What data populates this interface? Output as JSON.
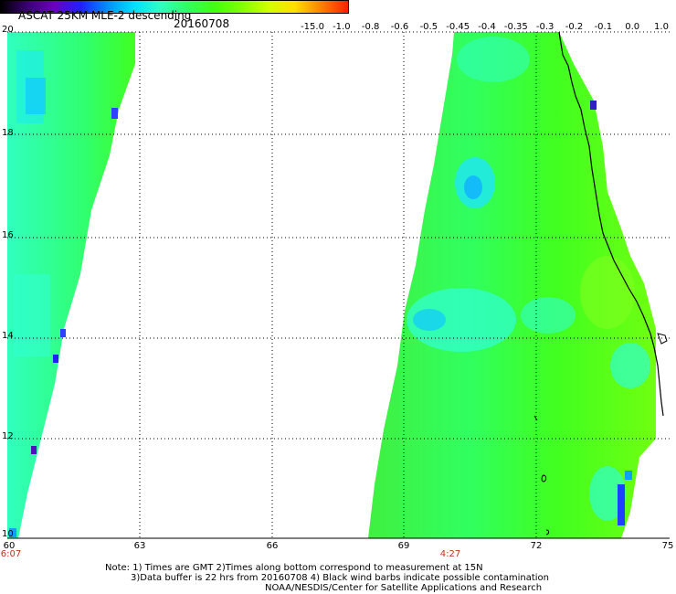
{
  "header": {
    "title": "ASCAT 25KM MLE-2 descending",
    "date": "20160708"
  },
  "colorbar": {
    "labels": [
      "-15.0",
      "-1.0",
      "-0.8",
      "-0.6",
      "-0.5",
      "-0.45",
      "-0.4",
      "-0.35",
      "-0.3",
      "-0.2",
      "-0.1",
      "0.0",
      "1.0"
    ],
    "colors": [
      "#000000",
      "#3a0070",
      "#6a00c0",
      "#2020ff",
      "#0090ff",
      "#00e0ff",
      "#30ffc0",
      "#30ff60",
      "#40ff10",
      "#80ff00",
      "#d0ff00",
      "#ffe000",
      "#ff8000",
      "#ff2000"
    ]
  },
  "map": {
    "lat_labels": [
      "20",
      "18",
      "16",
      "14",
      "12",
      "10"
    ],
    "lon_labels": [
      "60",
      "63",
      "66",
      "69",
      "72",
      "75"
    ],
    "times": [
      "6:07",
      "4:27"
    ]
  },
  "notes": {
    "line1": "Note: 1) Times are GMT 2)Times along bottom correspond to measurement at 15N",
    "line2": "3)Data buffer is 22 hrs from 20160708 4) Black wind barbs indicate possible contamination",
    "line3": "NOAA/NESDIS/Center for Satellite Applications and Research"
  }
}
